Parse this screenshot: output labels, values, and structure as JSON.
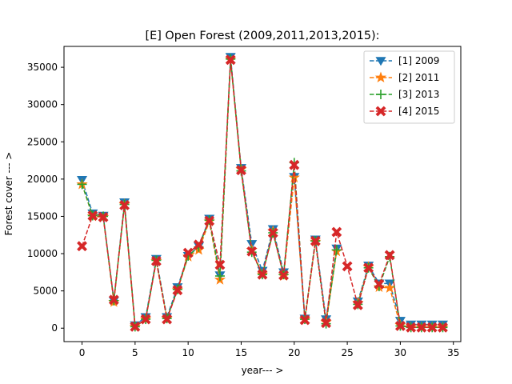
{
  "chart_data": {
    "type": "line",
    "title": "[E] Open Forest (2009,2011,2013,2015):",
    "xlabel": "year--- >",
    "ylabel": "Forest cover --- >",
    "xlim": [
      -1.7,
      35.7
    ],
    "ylim": [
      -1800,
      37800
    ],
    "xticks": [
      0,
      5,
      10,
      15,
      20,
      25,
      30,
      35
    ],
    "yticks": [
      0,
      5000,
      10000,
      15000,
      20000,
      25000,
      30000,
      35000
    ],
    "grid": false,
    "legend_position": "upper right",
    "x": [
      0,
      1,
      2,
      3,
      4,
      5,
      6,
      7,
      8,
      9,
      10,
      11,
      12,
      13,
      14,
      15,
      16,
      17,
      18,
      19,
      20,
      21,
      22,
      23,
      24,
      25,
      26,
      27,
      28,
      29,
      30,
      31,
      32,
      33,
      34
    ],
    "series": [
      {
        "name": "[1] 2009",
        "color": "#1f77b4",
        "marker": "triangle-down",
        "values": [
          19900,
          15400,
          15100,
          3700,
          16900,
          400,
          1500,
          9300,
          1500,
          5500,
          9700,
          11000,
          14700,
          7100,
          36400,
          21500,
          11300,
          7700,
          13300,
          7500,
          20300,
          1300,
          11900,
          1200,
          10700,
          null,
          3600,
          8400,
          6000,
          6000,
          1000,
          500,
          500,
          500,
          500
        ]
      },
      {
        "name": "[2] 2011",
        "color": "#ff7f0e",
        "marker": "star",
        "values": [
          19300,
          15000,
          14900,
          3500,
          16600,
          200,
          1200,
          9000,
          1300,
          5100,
          9600,
          10500,
          14300,
          6500,
          36000,
          21300,
          10500,
          7200,
          13000,
          7000,
          20200,
          1100,
          11600,
          800,
          10300,
          null,
          3400,
          8200,
          5500,
          5400,
          400,
          100,
          100,
          100,
          100
        ]
      },
      {
        "name": "[3] 2013",
        "color": "#2ca02c",
        "marker": "plus",
        "values": [
          19300,
          15100,
          15000,
          3700,
          16600,
          200,
          1200,
          9100,
          1300,
          5200,
          9700,
          10900,
          14500,
          7000,
          36100,
          21100,
          10200,
          7200,
          12800,
          7200,
          22200,
          1200,
          11700,
          600,
          10500,
          null,
          3200,
          8100,
          5600,
          9600,
          300,
          100,
          100,
          100,
          100
        ]
      },
      {
        "name": "[4] 2015",
        "color": "#d62728",
        "marker": "x-filled",
        "values": [
          11000,
          15100,
          14900,
          3800,
          16500,
          200,
          1200,
          9000,
          1200,
          5100,
          10100,
          11200,
          14400,
          8500,
          36000,
          21200,
          10300,
          7200,
          12800,
          7100,
          21900,
          1100,
          11700,
          700,
          12900,
          8300,
          3100,
          8100,
          5900,
          9800,
          300,
          100,
          100,
          100,
          100
        ]
      }
    ]
  }
}
